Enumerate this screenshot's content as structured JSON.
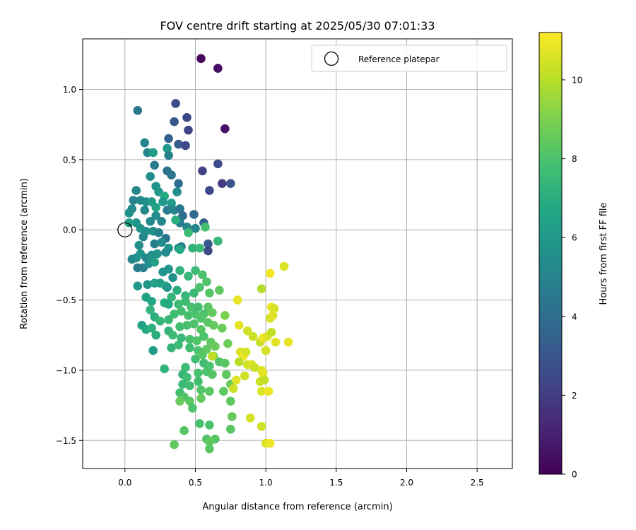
{
  "chart_data": {
    "type": "scatter",
    "title": "FOV centre drift starting at 2025/05/30 07:01:33",
    "xlabel": "Angular distance from reference (arcmin)",
    "ylabel": "Rotation from reference (arcmin)",
    "xlim": [
      -0.3,
      2.75
    ],
    "ylim": [
      -1.7,
      1.36
    ],
    "xticks": [
      0.0,
      0.5,
      1.0,
      1.5,
      2.0,
      2.5
    ],
    "xtick_labels": [
      "0.0",
      "0.5",
      "1.0",
      "1.5",
      "2.0",
      "2.5"
    ],
    "yticks": [
      -1.5,
      -1.0,
      -0.5,
      0.0,
      0.5,
      1.0
    ],
    "ytick_labels": [
      "−1.5",
      "−1.0",
      "−0.5",
      "0.0",
      "0.5",
      "1.0"
    ],
    "grid": true,
    "legend": {
      "label": "Reference platepar",
      "placement": "top-right"
    },
    "reference_point": {
      "x": 0.0,
      "y": 0.0
    },
    "colorbar": {
      "label": "Hours from first FF file",
      "range": [
        0,
        11.2
      ],
      "colormap": "viridis",
      "ticks": [
        0,
        2,
        4,
        6,
        8,
        10
      ],
      "tick_labels": [
        "0",
        "2",
        "4",
        "6",
        "8",
        "10"
      ]
    },
    "points": [
      {
        "x": 0.54,
        "y": 1.22,
        "h": 0.2
      },
      {
        "x": 0.66,
        "y": 1.15,
        "h": 0.4
      },
      {
        "x": 0.71,
        "y": 0.72,
        "h": 0.6
      },
      {
        "x": 0.36,
        "y": 0.9,
        "h": 2.6
      },
      {
        "x": 0.44,
        "y": 0.8,
        "h": 2.5
      },
      {
        "x": 0.35,
        "y": 0.77,
        "h": 3.0
      },
      {
        "x": 0.45,
        "y": 0.71,
        "h": 2.3
      },
      {
        "x": 0.31,
        "y": 0.65,
        "h": 3.5
      },
      {
        "x": 0.38,
        "y": 0.61,
        "h": 3.2
      },
      {
        "x": 0.43,
        "y": 0.6,
        "h": 2.4
      },
      {
        "x": 0.66,
        "y": 0.47,
        "h": 2.6
      },
      {
        "x": 0.55,
        "y": 0.42,
        "h": 2.2
      },
      {
        "x": 0.69,
        "y": 0.33,
        "h": 2.0
      },
      {
        "x": 0.75,
        "y": 0.33,
        "h": 2.8
      },
      {
        "x": 0.6,
        "y": 0.28,
        "h": 2.4
      },
      {
        "x": 0.09,
        "y": 0.85,
        "h": 4.5
      },
      {
        "x": 0.14,
        "y": 0.62,
        "h": 5.0
      },
      {
        "x": 0.16,
        "y": 0.55,
        "h": 5.2
      },
      {
        "x": 0.2,
        "y": 0.55,
        "h": 6.2
      },
      {
        "x": 0.3,
        "y": 0.58,
        "h": 6.0
      },
      {
        "x": 0.31,
        "y": 0.53,
        "h": 4.8
      },
      {
        "x": 0.21,
        "y": 0.46,
        "h": 4.6
      },
      {
        "x": 0.3,
        "y": 0.42,
        "h": 4.2
      },
      {
        "x": 0.18,
        "y": 0.38,
        "h": 5.4
      },
      {
        "x": 0.33,
        "y": 0.39,
        "h": 4.4
      },
      {
        "x": 0.38,
        "y": 0.33,
        "h": 4.0
      },
      {
        "x": 0.22,
        "y": 0.31,
        "h": 5.7
      },
      {
        "x": 0.24,
        "y": 0.27,
        "h": 6.0
      },
      {
        "x": 0.28,
        "y": 0.24,
        "h": 6.8
      },
      {
        "x": 0.37,
        "y": 0.27,
        "h": 5.4
      },
      {
        "x": 0.08,
        "y": 0.28,
        "h": 5.2
      },
      {
        "x": 0.06,
        "y": 0.21,
        "h": 5.0
      },
      {
        "x": 0.11,
        "y": 0.21,
        "h": 5.3
      },
      {
        "x": 0.03,
        "y": 0.12,
        "h": 5.6
      },
      {
        "x": 0.05,
        "y": 0.15,
        "h": 5.4
      },
      {
        "x": 0.15,
        "y": 0.2,
        "h": 5.5
      },
      {
        "x": 0.19,
        "y": 0.2,
        "h": 6.1
      },
      {
        "x": 0.22,
        "y": 0.16,
        "h": 6.5
      },
      {
        "x": 0.27,
        "y": 0.2,
        "h": 5.9
      },
      {
        "x": 0.33,
        "y": 0.19,
        "h": 6.0
      },
      {
        "x": 0.3,
        "y": 0.14,
        "h": 4.7
      },
      {
        "x": 0.35,
        "y": 0.14,
        "h": 5.0
      },
      {
        "x": 0.39,
        "y": 0.15,
        "h": 4.5
      },
      {
        "x": 0.41,
        "y": 0.1,
        "h": 4.0
      },
      {
        "x": 0.49,
        "y": 0.11,
        "h": 3.9
      },
      {
        "x": 0.39,
        "y": 0.05,
        "h": 4.8
      },
      {
        "x": 0.44,
        "y": 0.02,
        "h": 5.0
      },
      {
        "x": 0.5,
        "y": 0.01,
        "h": 5.1
      },
      {
        "x": 0.36,
        "y": 0.07,
        "h": 7.0
      },
      {
        "x": 0.22,
        "y": 0.1,
        "h": 5.5
      },
      {
        "x": 0.26,
        "y": 0.06,
        "h": 5.0
      },
      {
        "x": 0.18,
        "y": 0.06,
        "h": 5.3
      },
      {
        "x": 0.14,
        "y": 0.14,
        "h": 5.2
      },
      {
        "x": 0.08,
        "y": 0.05,
        "h": 5.8
      },
      {
        "x": 0.03,
        "y": 0.05,
        "h": 6.2
      },
      {
        "x": 0.11,
        "y": 0.01,
        "h": 5.7
      },
      {
        "x": 0.15,
        "y": -0.01,
        "h": 5.6
      },
      {
        "x": 0.2,
        "y": -0.01,
        "h": 5.5
      },
      {
        "x": 0.24,
        "y": -0.02,
        "h": 4.9
      },
      {
        "x": 0.29,
        "y": -0.06,
        "h": 4.3
      },
      {
        "x": 0.13,
        "y": -0.05,
        "h": 5.1
      },
      {
        "x": 0.21,
        "y": -0.1,
        "h": 4.8
      },
      {
        "x": 0.26,
        "y": -0.09,
        "h": 5.3
      },
      {
        "x": 0.1,
        "y": -0.11,
        "h": 5.5
      },
      {
        "x": 0.31,
        "y": -0.13,
        "h": 5.8
      },
      {
        "x": 0.38,
        "y": -0.13,
        "h": 5.4
      },
      {
        "x": 0.4,
        "y": -0.12,
        "h": 4.9
      },
      {
        "x": 0.56,
        "y": 0.05,
        "h": 3.3
      },
      {
        "x": 0.59,
        "y": -0.1,
        "h": 3.2
      },
      {
        "x": 0.59,
        "y": -0.15,
        "h": 2.5
      },
      {
        "x": 0.53,
        "y": -0.13,
        "h": 7.5
      },
      {
        "x": 0.66,
        "y": -0.08,
        "h": 7.4
      },
      {
        "x": 0.57,
        "y": 0.02,
        "h": 7.8
      },
      {
        "x": 0.45,
        "y": -0.02,
        "h": 7.6
      },
      {
        "x": 0.48,
        "y": -0.13,
        "h": 7.2
      },
      {
        "x": 0.39,
        "y": -0.14,
        "h": 6.7
      },
      {
        "x": 0.05,
        "y": -0.21,
        "h": 5.2
      },
      {
        "x": 0.08,
        "y": -0.2,
        "h": 5.5
      },
      {
        "x": 0.11,
        "y": -0.17,
        "h": 5.8
      },
      {
        "x": 0.15,
        "y": -0.2,
        "h": 5.2
      },
      {
        "x": 0.19,
        "y": -0.18,
        "h": 5.6
      },
      {
        "x": 0.23,
        "y": -0.17,
        "h": 5.7
      },
      {
        "x": 0.29,
        "y": -0.16,
        "h": 5.3
      },
      {
        "x": 0.09,
        "y": -0.27,
        "h": 4.6
      },
      {
        "x": 0.13,
        "y": -0.27,
        "h": 4.8
      },
      {
        "x": 0.17,
        "y": -0.24,
        "h": 5.4
      },
      {
        "x": 0.21,
        "y": -0.23,
        "h": 6.3
      },
      {
        "x": 0.27,
        "y": -0.3,
        "h": 5.6
      },
      {
        "x": 0.31,
        "y": -0.28,
        "h": 5.8
      },
      {
        "x": 0.09,
        "y": -0.4,
        "h": 6.0
      },
      {
        "x": 0.16,
        "y": -0.39,
        "h": 5.9
      },
      {
        "x": 0.21,
        "y": -0.38,
        "h": 6.4
      },
      {
        "x": 0.25,
        "y": -0.38,
        "h": 6.1
      },
      {
        "x": 0.29,
        "y": -0.4,
        "h": 6.8
      },
      {
        "x": 0.34,
        "y": -0.34,
        "h": 5.7
      },
      {
        "x": 0.3,
        "y": -0.41,
        "h": 6.0
      },
      {
        "x": 0.39,
        "y": -0.29,
        "h": 7.2
      },
      {
        "x": 0.45,
        "y": -0.33,
        "h": 7.4
      },
      {
        "x": 0.5,
        "y": -0.29,
        "h": 7.6
      },
      {
        "x": 0.55,
        "y": -0.32,
        "h": 8.0
      },
      {
        "x": 0.58,
        "y": -0.37,
        "h": 8.1
      },
      {
        "x": 0.53,
        "y": -0.41,
        "h": 8.0
      },
      {
        "x": 0.6,
        "y": -0.45,
        "h": 8.2
      },
      {
        "x": 0.67,
        "y": -0.43,
        "h": 8.4
      },
      {
        "x": 0.49,
        "y": -0.45,
        "h": 7.5
      },
      {
        "x": 0.43,
        "y": -0.47,
        "h": 7.4
      },
      {
        "x": 0.37,
        "y": -0.43,
        "h": 7.0
      },
      {
        "x": 0.15,
        "y": -0.48,
        "h": 6.4
      },
      {
        "x": 0.19,
        "y": -0.51,
        "h": 6.6
      },
      {
        "x": 0.28,
        "y": -0.52,
        "h": 6.9
      },
      {
        "x": 0.33,
        "y": -0.48,
        "h": 7.3
      },
      {
        "x": 0.31,
        "y": -0.53,
        "h": 6.8
      },
      {
        "x": 0.38,
        "y": -0.53,
        "h": 7.6
      },
      {
        "x": 0.43,
        "y": -0.51,
        "h": 7.7
      },
      {
        "x": 0.47,
        "y": -0.55,
        "h": 7.9
      },
      {
        "x": 0.52,
        "y": -0.55,
        "h": 7.8
      },
      {
        "x": 0.56,
        "y": -0.6,
        "h": 8.0
      },
      {
        "x": 0.59,
        "y": -0.55,
        "h": 8.3
      },
      {
        "x": 0.62,
        "y": -0.59,
        "h": 8.5
      },
      {
        "x": 0.18,
        "y": -0.57,
        "h": 7.3
      },
      {
        "x": 0.21,
        "y": -0.62,
        "h": 7.0
      },
      {
        "x": 0.25,
        "y": -0.65,
        "h": 7.4
      },
      {
        "x": 0.31,
        "y": -0.64,
        "h": 7.5
      },
      {
        "x": 0.35,
        "y": -0.6,
        "h": 7.7
      },
      {
        "x": 0.4,
        "y": -0.58,
        "h": 7.8
      },
      {
        "x": 0.45,
        "y": -0.61,
        "h": 7.9
      },
      {
        "x": 0.5,
        "y": -0.6,
        "h": 8.0
      },
      {
        "x": 0.54,
        "y": -0.63,
        "h": 8.1
      },
      {
        "x": 0.12,
        "y": -0.68,
        "h": 6.5
      },
      {
        "x": 0.15,
        "y": -0.71,
        "h": 6.8
      },
      {
        "x": 0.19,
        "y": -0.7,
        "h": 7.1
      },
      {
        "x": 0.22,
        "y": -0.75,
        "h": 7.0
      },
      {
        "x": 0.31,
        "y": -0.72,
        "h": 7.3
      },
      {
        "x": 0.34,
        "y": -0.75,
        "h": 7.6
      },
      {
        "x": 0.39,
        "y": -0.69,
        "h": 7.8
      },
      {
        "x": 0.44,
        "y": -0.68,
        "h": 7.9
      },
      {
        "x": 0.49,
        "y": -0.67,
        "h": 8.0
      },
      {
        "x": 0.54,
        "y": -0.71,
        "h": 8.2
      },
      {
        "x": 0.59,
        "y": -0.66,
        "h": 8.3
      },
      {
        "x": 0.63,
        "y": -0.68,
        "h": 8.5
      },
      {
        "x": 0.71,
        "y": -0.61,
        "h": 9.0
      },
      {
        "x": 0.69,
        "y": -0.7,
        "h": 8.6
      },
      {
        "x": 0.4,
        "y": -0.77,
        "h": 7.5
      },
      {
        "x": 0.46,
        "y": -0.78,
        "h": 7.9
      },
      {
        "x": 0.51,
        "y": -0.79,
        "h": 8.1
      },
      {
        "x": 0.56,
        "y": -0.76,
        "h": 8.0
      },
      {
        "x": 0.61,
        "y": -0.8,
        "h": 8.4
      },
      {
        "x": 0.2,
        "y": -0.86,
        "h": 6.2
      },
      {
        "x": 0.33,
        "y": -0.84,
        "h": 7.3
      },
      {
        "x": 0.38,
        "y": -0.82,
        "h": 7.6
      },
      {
        "x": 0.46,
        "y": -0.84,
        "h": 7.7
      },
      {
        "x": 0.52,
        "y": -0.86,
        "h": 8.0
      },
      {
        "x": 0.55,
        "y": -0.89,
        "h": 8.2
      },
      {
        "x": 0.58,
        "y": -0.85,
        "h": 8.4
      },
      {
        "x": 0.64,
        "y": -0.83,
        "h": 8.6
      },
      {
        "x": 0.73,
        "y": -0.81,
        "h": 8.7
      },
      {
        "x": 0.5,
        "y": -0.92,
        "h": 7.8
      },
      {
        "x": 0.56,
        "y": -0.95,
        "h": 7.7
      },
      {
        "x": 0.6,
        "y": -0.97,
        "h": 8.0
      },
      {
        "x": 0.63,
        "y": -0.9,
        "h": 8.7
      },
      {
        "x": 0.67,
        "y": -0.94,
        "h": 8.1
      },
      {
        "x": 0.71,
        "y": -0.95,
        "h": 8.3
      },
      {
        "x": 0.28,
        "y": -0.99,
        "h": 7.2
      },
      {
        "x": 0.43,
        "y": -0.98,
        "h": 7.6
      },
      {
        "x": 0.41,
        "y": -1.03,
        "h": 7.4
      },
      {
        "x": 0.44,
        "y": -1.05,
        "h": 7.7
      },
      {
        "x": 0.52,
        "y": -1.02,
        "h": 7.9
      },
      {
        "x": 0.58,
        "y": -1.01,
        "h": 8.0
      },
      {
        "x": 0.62,
        "y": -1.03,
        "h": 8.2
      },
      {
        "x": 0.72,
        "y": -1.03,
        "h": 8.4
      },
      {
        "x": 0.41,
        "y": -1.1,
        "h": 7.5
      },
      {
        "x": 0.46,
        "y": -1.11,
        "h": 7.7
      },
      {
        "x": 0.52,
        "y": -1.08,
        "h": 7.8
      },
      {
        "x": 0.54,
        "y": -1.14,
        "h": 8.1
      },
      {
        "x": 0.6,
        "y": -1.15,
        "h": 8.3
      },
      {
        "x": 0.7,
        "y": -1.15,
        "h": 8.4
      },
      {
        "x": 0.75,
        "y": -1.1,
        "h": 8.6
      },
      {
        "x": 0.39,
        "y": -1.16,
        "h": 7.8
      },
      {
        "x": 0.42,
        "y": -1.19,
        "h": 8.1
      },
      {
        "x": 0.46,
        "y": -1.22,
        "h": 8.3
      },
      {
        "x": 0.39,
        "y": -1.22,
        "h": 8.6
      },
      {
        "x": 0.54,
        "y": -1.2,
        "h": 8.5
      },
      {
        "x": 0.48,
        "y": -1.27,
        "h": 8.0
      },
      {
        "x": 0.75,
        "y": -1.22,
        "h": 8.4
      },
      {
        "x": 0.76,
        "y": -1.33,
        "h": 8.6
      },
      {
        "x": 0.53,
        "y": -1.38,
        "h": 7.9
      },
      {
        "x": 0.6,
        "y": -1.39,
        "h": 8.0
      },
      {
        "x": 0.42,
        "y": -1.43,
        "h": 8.2
      },
      {
        "x": 0.75,
        "y": -1.42,
        "h": 8.3
      },
      {
        "x": 0.58,
        "y": -1.49,
        "h": 8.1
      },
      {
        "x": 0.64,
        "y": -1.49,
        "h": 8.2
      },
      {
        "x": 0.6,
        "y": -1.51,
        "h": 8.4
      },
      {
        "x": 0.35,
        "y": -1.53,
        "h": 8.4
      },
      {
        "x": 0.6,
        "y": -1.56,
        "h": 8.3
      },
      {
        "x": 0.8,
        "y": -0.5,
        "h": 10.8
      },
      {
        "x": 0.97,
        "y": -0.42,
        "h": 9.9
      },
      {
        "x": 1.03,
        "y": -0.31,
        "h": 11.0
      },
      {
        "x": 1.13,
        "y": -0.26,
        "h": 10.6
      },
      {
        "x": 1.04,
        "y": -0.55,
        "h": 10.9
      },
      {
        "x": 1.06,
        "y": -0.56,
        "h": 10.5
      },
      {
        "x": 1.03,
        "y": -0.63,
        "h": 10.5
      },
      {
        "x": 1.05,
        "y": -0.61,
        "h": 10.7
      },
      {
        "x": 0.81,
        "y": -0.68,
        "h": 10.8
      },
      {
        "x": 0.87,
        "y": -0.72,
        "h": 10.4
      },
      {
        "x": 0.91,
        "y": -0.76,
        "h": 10.3
      },
      {
        "x": 0.96,
        "y": -0.8,
        "h": 10.2
      },
      {
        "x": 0.98,
        "y": -0.77,
        "h": 10.9
      },
      {
        "x": 1.01,
        "y": -0.76,
        "h": 10.6
      },
      {
        "x": 1.04,
        "y": -0.73,
        "h": 10.2
      },
      {
        "x": 1.0,
        "y": -0.86,
        "h": 10.5
      },
      {
        "x": 1.07,
        "y": -0.8,
        "h": 10.7
      },
      {
        "x": 1.16,
        "y": -0.8,
        "h": 10.8
      },
      {
        "x": 0.82,
        "y": -0.87,
        "h": 10.6
      },
      {
        "x": 0.84,
        "y": -0.9,
        "h": 10.9
      },
      {
        "x": 0.86,
        "y": -0.87,
        "h": 10.5
      },
      {
        "x": 0.81,
        "y": -0.94,
        "h": 10.0
      },
      {
        "x": 0.87,
        "y": -0.96,
        "h": 10.4
      },
      {
        "x": 0.9,
        "y": -0.96,
        "h": 10.6
      },
      {
        "x": 0.92,
        "y": -0.98,
        "h": 10.3
      },
      {
        "x": 0.97,
        "y": -1.0,
        "h": 10.6
      },
      {
        "x": 0.98,
        "y": -1.02,
        "h": 10.8
      },
      {
        "x": 0.85,
        "y": -1.04,
        "h": 10.4
      },
      {
        "x": 0.79,
        "y": -1.07,
        "h": 10.7
      },
      {
        "x": 0.96,
        "y": -1.08,
        "h": 10.3
      },
      {
        "x": 0.99,
        "y": -1.07,
        "h": 10.2
      },
      {
        "x": 0.77,
        "y": -1.13,
        "h": 10.4
      },
      {
        "x": 0.97,
        "y": -1.15,
        "h": 10.6
      },
      {
        "x": 1.02,
        "y": -1.15,
        "h": 10.9
      },
      {
        "x": 0.89,
        "y": -1.34,
        "h": 10.5
      },
      {
        "x": 0.97,
        "y": -1.4,
        "h": 10.4
      },
      {
        "x": 1.0,
        "y": -1.52,
        "h": 10.6
      },
      {
        "x": 1.03,
        "y": -1.52,
        "h": 10.9
      },
      {
        "x": 0.62,
        "y": -0.9,
        "h": 10.1
      }
    ]
  }
}
